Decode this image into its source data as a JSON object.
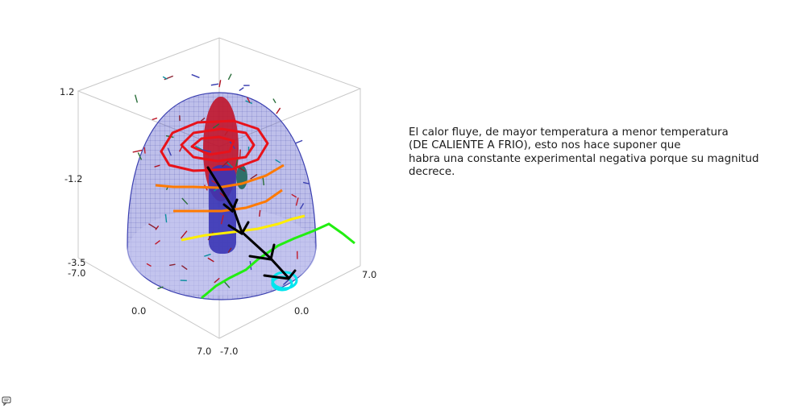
{
  "chart_data": {
    "type": "3d-surface",
    "title": "",
    "z_ticks": [
      "1.2",
      "-1.2",
      "-3.5"
    ],
    "x_ticks": [
      "-7.0",
      "0.0",
      "7.0"
    ],
    "y_ticks": [
      "-7.0",
      "0.0",
      "7.0"
    ],
    "zlim": [
      -3.5,
      1.2
    ],
    "xlim": [
      -7.0,
      7.0
    ],
    "ylim": [
      -7.0,
      7.0
    ],
    "surfaces": [
      {
        "kind": "dome",
        "color": "#3a3fb0",
        "opacity": 0.35
      },
      {
        "kind": "cylinder",
        "color": "#c0152b"
      },
      {
        "kind": "cylinder",
        "color": "#3a35b5"
      },
      {
        "kind": "cylinder",
        "color": "#2f6f6a"
      }
    ],
    "annotation_colors": [
      "#e8121a",
      "#ff7a00",
      "#ffee00",
      "#22ee11",
      "#00e5ee",
      "#000000"
    ]
  },
  "note": {
    "lines": [
      "El calor fluye, de mayor temperatura a menor temperatura",
      "(DE CALIENTE A FRIO), esto nos hace suponer que",
      "habra una constante experimental negativa porque su magnitud",
      "decrece."
    ]
  },
  "footer": {
    "icon": "chat-icon"
  }
}
